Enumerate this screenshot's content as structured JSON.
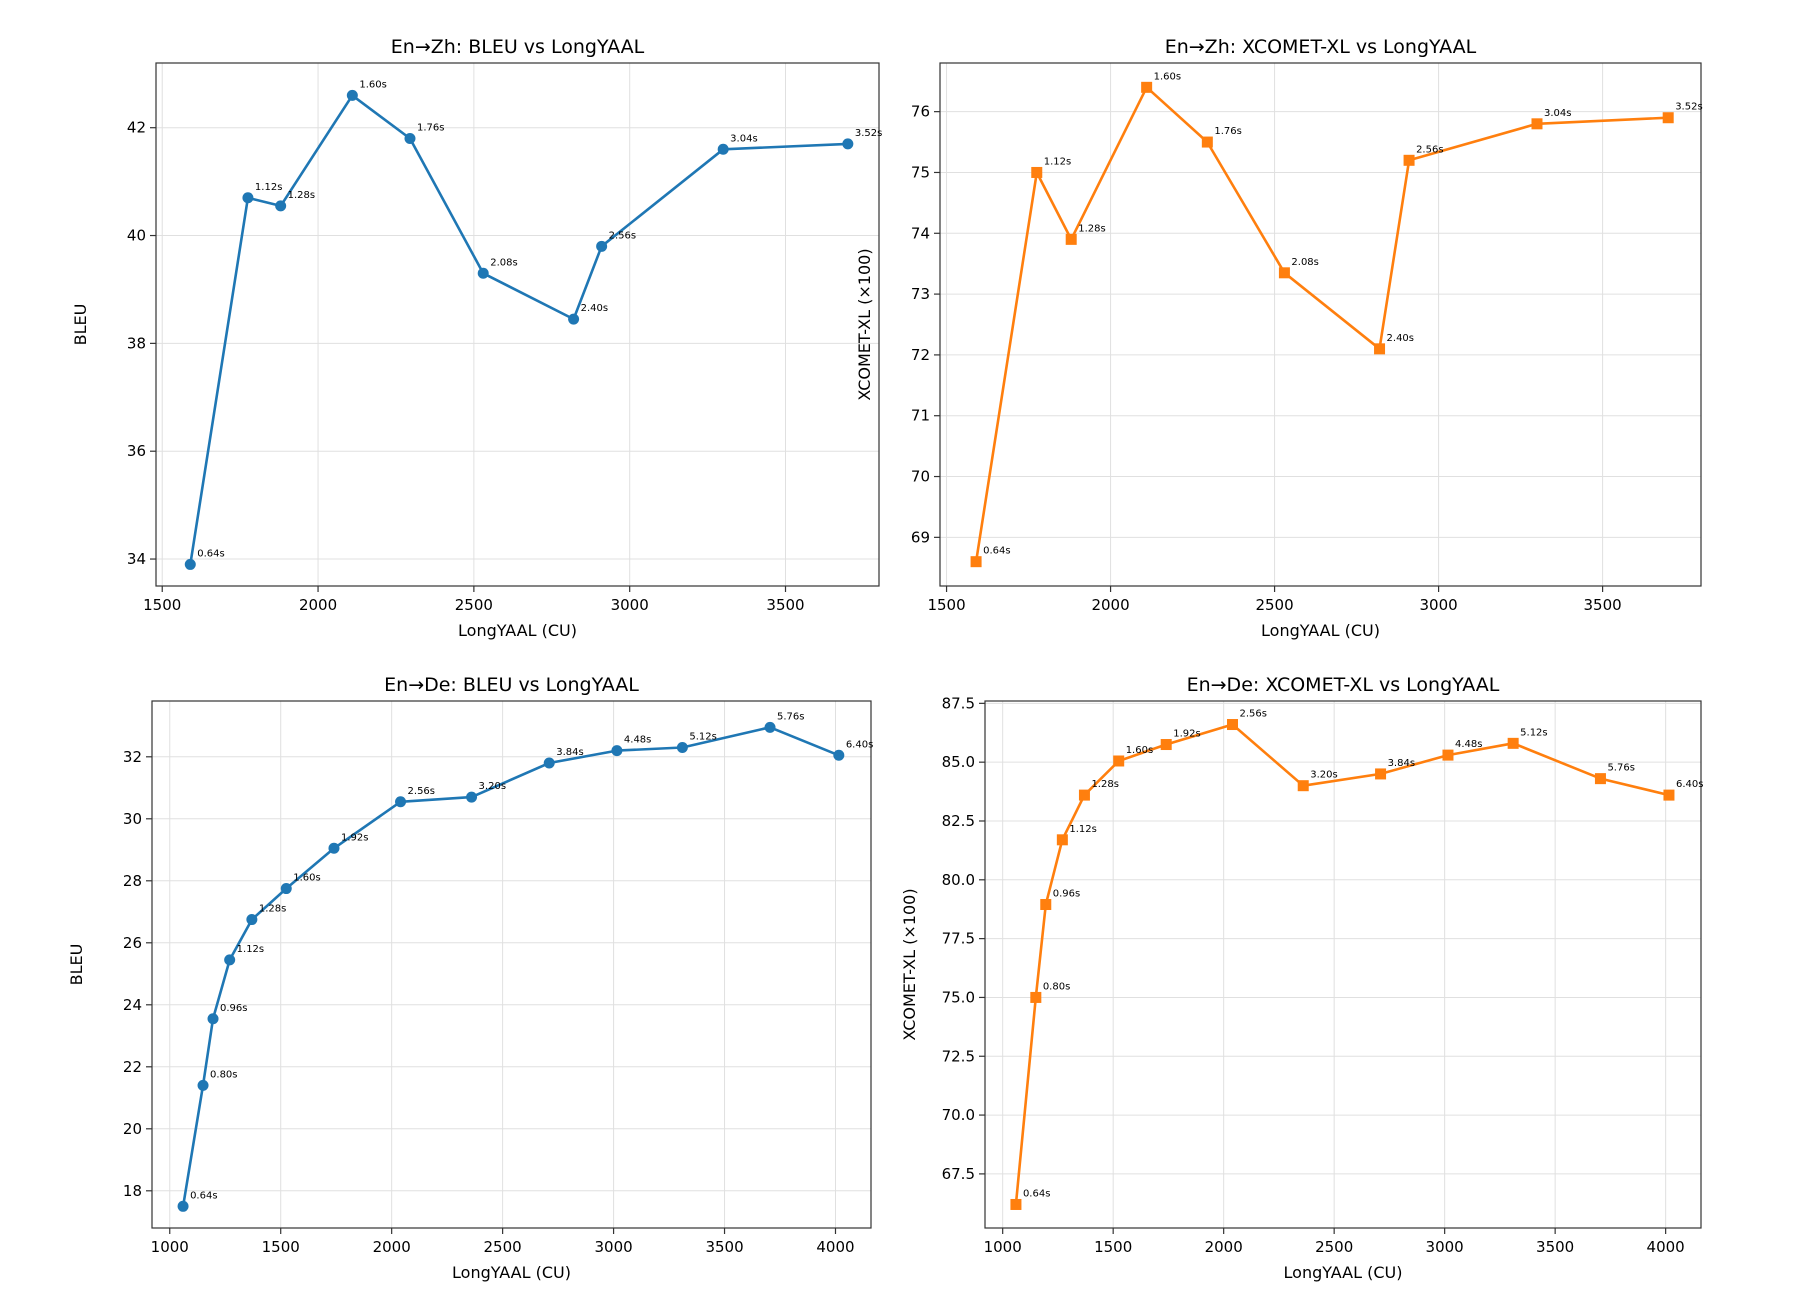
{
  "chart_data": [
    {
      "type": "line",
      "title": "En→Zh: BLEU vs LongYAAL",
      "xlabel": "LongYAAL (CU)",
      "ylabel": "BLEU",
      "color": "#1f77b4",
      "marker": "circle",
      "xlim": [
        1480,
        3800
      ],
      "ylim": [
        33.5,
        43.2
      ],
      "xticks": [
        1500,
        2000,
        2500,
        3000,
        3500
      ],
      "yticks": [
        34,
        36,
        38,
        40,
        42
      ],
      "grid": true,
      "points": [
        {
          "x": 1590,
          "y": 33.9,
          "label": "0.64s"
        },
        {
          "x": 1775,
          "y": 40.7,
          "label": "1.12s"
        },
        {
          "x": 1880,
          "y": 40.55,
          "label": "1.28s"
        },
        {
          "x": 2110,
          "y": 42.6,
          "label": "1.60s"
        },
        {
          "x": 2295,
          "y": 41.8,
          "label": "1.76s"
        },
        {
          "x": 2530,
          "y": 39.3,
          "label": "2.08s"
        },
        {
          "x": 2820,
          "y": 38.45,
          "label": "2.40s"
        },
        {
          "x": 2910,
          "y": 39.8,
          "label": "2.56s"
        },
        {
          "x": 3300,
          "y": 41.6,
          "label": "3.04s"
        },
        {
          "x": 3700,
          "y": 41.7,
          "label": "3.52s"
        }
      ]
    },
    {
      "type": "line",
      "title": "En→Zh: XCOMET-XL vs LongYAAL",
      "xlabel": "LongYAAL (CU)",
      "ylabel": "XCOMET-XL (×100)",
      "color": "#ff7f0e",
      "marker": "square",
      "xlim": [
        1480,
        3800
      ],
      "ylim": [
        68.2,
        76.8
      ],
      "xticks": [
        1500,
        2000,
        2500,
        3000,
        3500
      ],
      "yticks": [
        69,
        70,
        71,
        72,
        73,
        74,
        75,
        76
      ],
      "grid": true,
      "points": [
        {
          "x": 1590,
          "y": 68.6,
          "label": "0.64s"
        },
        {
          "x": 1775,
          "y": 75.0,
          "label": "1.12s"
        },
        {
          "x": 1880,
          "y": 73.9,
          "label": "1.28s"
        },
        {
          "x": 2110,
          "y": 76.4,
          "label": "1.60s"
        },
        {
          "x": 2295,
          "y": 75.5,
          "label": "1.76s"
        },
        {
          "x": 2530,
          "y": 73.35,
          "label": "2.08s"
        },
        {
          "x": 2820,
          "y": 72.1,
          "label": "2.40s"
        },
        {
          "x": 2910,
          "y": 75.2,
          "label": "2.56s"
        },
        {
          "x": 3300,
          "y": 75.8,
          "label": "3.04s"
        },
        {
          "x": 3700,
          "y": 75.9,
          "label": "3.52s"
        }
      ]
    },
    {
      "type": "line",
      "title": "En→De: BLEU vs LongYAAL",
      "xlabel": "LongYAAL (CU)",
      "ylabel": "BLEU",
      "color": "#1f77b4",
      "marker": "circle",
      "xlim": [
        920,
        4160
      ],
      "ylim": [
        16.8,
        33.8
      ],
      "xticks": [
        1000,
        1500,
        2000,
        2500,
        3000,
        3500,
        4000
      ],
      "yticks": [
        18,
        20,
        22,
        24,
        26,
        28,
        30,
        32
      ],
      "grid": true,
      "points": [
        {
          "x": 1060,
          "y": 17.5,
          "label": "0.64s"
        },
        {
          "x": 1150,
          "y": 21.4,
          "label": "0.80s"
        },
        {
          "x": 1195,
          "y": 23.55,
          "label": "0.96s"
        },
        {
          "x": 1270,
          "y": 25.45,
          "label": "1.12s"
        },
        {
          "x": 1370,
          "y": 26.75,
          "label": "1.28s"
        },
        {
          "x": 1525,
          "y": 27.75,
          "label": "1.60s"
        },
        {
          "x": 1740,
          "y": 29.05,
          "label": "1.92s"
        },
        {
          "x": 2040,
          "y": 30.55,
          "label": "2.56s"
        },
        {
          "x": 2360,
          "y": 30.7,
          "label": "3.20s"
        },
        {
          "x": 2710,
          "y": 31.8,
          "label": "3.84s"
        },
        {
          "x": 3015,
          "y": 32.2,
          "label": "4.48s"
        },
        {
          "x": 3310,
          "y": 32.3,
          "label": "5.12s"
        },
        {
          "x": 3705,
          "y": 32.95,
          "label": "5.76s"
        },
        {
          "x": 4015,
          "y": 32.05,
          "label": "6.40s"
        }
      ]
    },
    {
      "type": "line",
      "title": "En→De: XCOMET-XL vs LongYAAL",
      "xlabel": "LongYAAL (CU)",
      "ylabel": "XCOMET-XL (×100)",
      "color": "#ff7f0e",
      "marker": "square",
      "xlim": [
        920,
        4160
      ],
      "ylim": [
        65.2,
        87.6
      ],
      "xticks": [
        1000,
        1500,
        2000,
        2500,
        3000,
        3500,
        4000
      ],
      "yticks": [
        67.5,
        70.0,
        72.5,
        75.0,
        77.5,
        80.0,
        82.5,
        85.0,
        87.5
      ],
      "grid": true,
      "points": [
        {
          "x": 1060,
          "y": 66.2,
          "label": "0.64s"
        },
        {
          "x": 1150,
          "y": 75.0,
          "label": "0.80s"
        },
        {
          "x": 1195,
          "y": 78.95,
          "label": "0.96s"
        },
        {
          "x": 1270,
          "y": 81.7,
          "label": "1.12s"
        },
        {
          "x": 1370,
          "y": 83.6,
          "label": "1.28s"
        },
        {
          "x": 1525,
          "y": 85.05,
          "label": "1.60s"
        },
        {
          "x": 1740,
          "y": 85.75,
          "label": "1.92s"
        },
        {
          "x": 2040,
          "y": 86.6,
          "label": "2.56s"
        },
        {
          "x": 2360,
          "y": 84.0,
          "label": "3.20s"
        },
        {
          "x": 2710,
          "y": 84.5,
          "label": "3.84s"
        },
        {
          "x": 3015,
          "y": 85.3,
          "label": "4.48s"
        },
        {
          "x": 3310,
          "y": 85.8,
          "label": "5.12s"
        },
        {
          "x": 3705,
          "y": 84.3,
          "label": "5.76s"
        },
        {
          "x": 4015,
          "y": 83.6,
          "label": "6.40s"
        }
      ]
    }
  ]
}
